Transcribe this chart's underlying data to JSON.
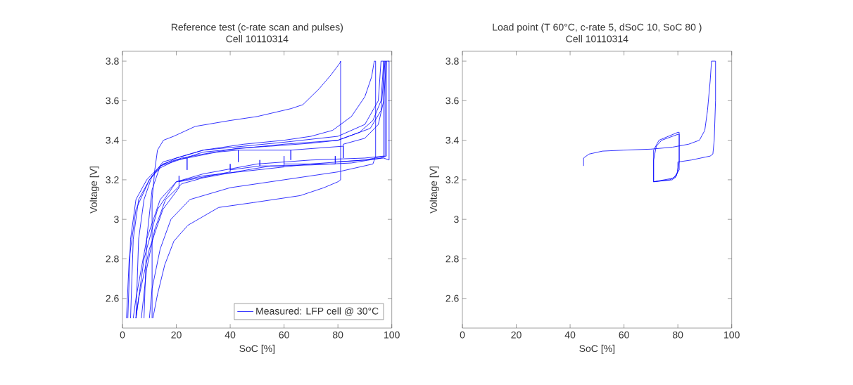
{
  "chart_data": [
    {
      "type": "line",
      "title": "Reference test (c-rate scan and pulses)",
      "subtitle": "Cell 10110314",
      "xlabel": "SoC [%]",
      "ylabel": "Voltage [V]",
      "xlim": [
        0,
        100
      ],
      "ylim": [
        2.45,
        3.85
      ],
      "xticks": [
        0,
        20,
        40,
        60,
        80,
        100
      ],
      "yticks": [
        2.6,
        2.8,
        3,
        3.2,
        3.4,
        3.6,
        3.8
      ],
      "grid": false,
      "legend": "bottom right",
      "line_style": "solid",
      "marker": "none",
      "series": [
        {
          "name": "Measured: LFP cell @ 30°C",
          "color": "#0000ff",
          "x": [
            11,
            11,
            12,
            13,
            15.2,
            19,
            27,
            40,
            50,
            62.6,
            67,
            73,
            77.4,
            80.7,
            81,
            81,
            80,
            74.8,
            66,
            48.7,
            35.7,
            24.3,
            19.1,
            15.7,
            13,
            11.3,
            null,
            8,
            9,
            11,
            14,
            20,
            30,
            45,
            60,
            70,
            78,
            85,
            90,
            92.5,
            93.5,
            94,
            94,
            93,
            80,
            60,
            40,
            25,
            18,
            14,
            11,
            10,
            null,
            5,
            6,
            8,
            11,
            15,
            22,
            30,
            43,
            55,
            70,
            80,
            88,
            93,
            96,
            97,
            98,
            98,
            96,
            85,
            70,
            55,
            42,
            30,
            22,
            16,
            12,
            9,
            7,
            null,
            3,
            4,
            6,
            10,
            14,
            20,
            24,
            24,
            24,
            35,
            43,
            43,
            43,
            62.5,
            62.5,
            62.5,
            82,
            82,
            82,
            90,
            95,
            97,
            98,
            99,
            99,
            97,
            90,
            79,
            79,
            79,
            60,
            60,
            60,
            51,
            51,
            51,
            40,
            40,
            40,
            21,
            21,
            21,
            15,
            10,
            6,
            5,
            null,
            2,
            3,
            5,
            9,
            14,
            30,
            60,
            80,
            92,
            96,
            97.5,
            97.5,
            90,
            70,
            50,
            30,
            20,
            14,
            9,
            5,
            4,
            null,
            1.5,
            2.5,
            5,
            10,
            15,
            30,
            60,
            80,
            90,
            95,
            96,
            97,
            97,
            90,
            70,
            50,
            30,
            20,
            13,
            8,
            5
          ],
          "values": [
            2.5,
            3.1,
            3.25,
            3.35,
            3.4,
            3.42,
            3.47,
            3.5,
            3.52,
            3.56,
            3.58,
            3.66,
            3.73,
            3.79,
            3.8,
            3.2,
            3.19,
            3.16,
            3.12,
            3.085,
            3.06,
            2.97,
            2.89,
            2.77,
            2.62,
            2.5,
            null,
            2.5,
            2.9,
            3.15,
            3.27,
            3.31,
            3.35,
            3.38,
            3.4,
            3.42,
            3.45,
            3.52,
            3.62,
            3.72,
            3.8,
            3.8,
            3.32,
            3.28,
            3.24,
            3.2,
            3.16,
            3.1,
            3.0,
            2.85,
            2.65,
            2.5,
            null,
            2.5,
            2.9,
            3.1,
            3.22,
            3.28,
            3.31,
            3.33,
            3.36,
            3.37,
            3.385,
            3.4,
            3.44,
            3.5,
            3.6,
            3.8,
            3.8,
            3.32,
            3.31,
            3.285,
            3.275,
            3.27,
            3.24,
            3.21,
            3.18,
            3.1,
            2.95,
            2.75,
            2.5,
            null,
            2.5,
            2.9,
            3.1,
            3.2,
            3.26,
            3.3,
            3.31,
            3.25,
            3.31,
            3.34,
            3.35,
            3.29,
            3.35,
            3.35,
            3.3,
            3.35,
            3.37,
            3.31,
            3.38,
            3.41,
            3.48,
            3.6,
            3.8,
            3.8,
            3.3,
            3.31,
            3.3,
            3.29,
            3.32,
            3.28,
            3.28,
            3.32,
            3.27,
            3.27,
            3.3,
            3.27,
            3.25,
            3.28,
            3.24,
            3.19,
            3.22,
            3.16,
            3.05,
            2.85,
            2.6,
            2.5,
            null,
            2.5,
            2.9,
            3.1,
            3.2,
            3.27,
            3.34,
            3.38,
            3.4,
            3.46,
            3.55,
            3.8,
            3.32,
            3.3,
            3.28,
            3.25,
            3.22,
            3.19,
            3.1,
            2.9,
            2.6,
            2.5,
            null,
            2.5,
            2.8,
            3.05,
            3.2,
            3.29,
            3.35,
            3.39,
            3.42,
            3.48,
            3.6,
            3.8,
            3.8,
            3.32,
            3.31,
            3.3,
            3.28,
            3.23,
            3.19,
            3.05,
            2.8,
            2.5
          ]
        }
      ]
    },
    {
      "type": "line",
      "title": "Load point (T 60°C, c-rate 5, dSoC 10, SoC 80 )",
      "subtitle": "Cell 10110314",
      "xlabel": "SoC [%]",
      "ylabel": "Voltage [V]",
      "xlim": [
        0,
        100
      ],
      "ylim": [
        2.45,
        3.85
      ],
      "xticks": [
        0,
        20,
        40,
        60,
        80,
        100
      ],
      "yticks": [
        2.6,
        2.8,
        3,
        3.2,
        3.4,
        3.6,
        3.8
      ],
      "grid": false,
      "line_style": "solid",
      "marker": "none",
      "series": [
        {
          "color": "#0000ff",
          "x": [
            45,
            45,
            47,
            52,
            60,
            70,
            78,
            84,
            88,
            90,
            91,
            92,
            92.5,
            94,
            94,
            93.5,
            93,
            92,
            85,
            80,
            80,
            79,
            75,
            71,
            71,
            72,
            74,
            80,
            80.5,
            80.5,
            79.5,
            77,
            71,
            71,
            73,
            80,
            80.5,
            80.5,
            78,
            71
          ],
          "values": [
            3.27,
            3.31,
            3.33,
            3.345,
            3.35,
            3.355,
            3.365,
            3.38,
            3.4,
            3.45,
            3.55,
            3.7,
            3.8,
            3.8,
            3.6,
            3.4,
            3.33,
            3.32,
            3.3,
            3.29,
            3.24,
            3.21,
            3.2,
            3.19,
            3.3,
            3.37,
            3.4,
            3.43,
            3.43,
            3.29,
            3.22,
            3.2,
            3.19,
            3.35,
            3.4,
            3.44,
            3.44,
            3.25,
            3.2,
            3.19
          ]
        }
      ]
    }
  ]
}
